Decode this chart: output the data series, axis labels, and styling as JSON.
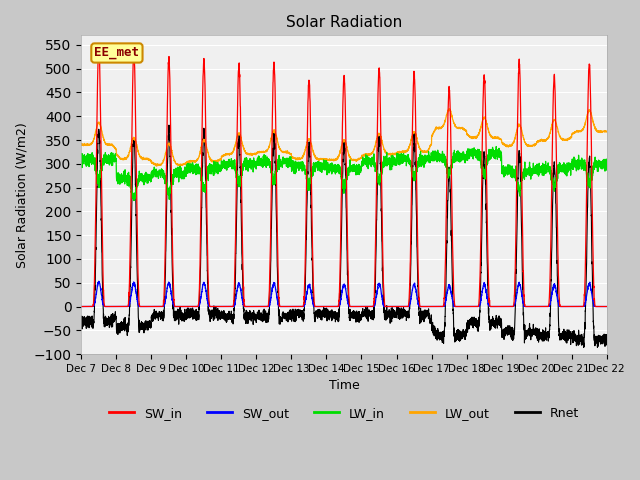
{
  "title": "Solar Radiation",
  "ylabel": "Solar Radiation (W/m2)",
  "xlabel": "Time",
  "ylim": [
    -100,
    570
  ],
  "yticks": [
    -100,
    -50,
    0,
    50,
    100,
    150,
    200,
    250,
    300,
    350,
    400,
    450,
    500,
    550
  ],
  "fig_bg_color": "#c8c8c8",
  "plot_bg_color": "#f0f0f0",
  "line_colors": {
    "SW_in": "#ff0000",
    "SW_out": "#0000ff",
    "LW_in": "#00dd00",
    "LW_out": "#ffa500",
    "Rnet": "#000000"
  },
  "watermark_text": "EE_met",
  "watermark_bg": "#ffff99",
  "watermark_border": "#cc8800",
  "n_days": 15,
  "start_day": 7,
  "points_per_day": 288,
  "sw_in_peak": [
    545,
    530,
    520,
    515,
    505,
    510,
    475,
    485,
    500,
    490,
    460,
    485,
    510,
    485,
    510
  ],
  "lw_in_night": [
    310,
    270,
    280,
    290,
    300,
    305,
    295,
    290,
    305,
    310,
    315,
    320,
    285,
    290,
    300
  ],
  "lw_out_night": [
    340,
    310,
    298,
    305,
    320,
    325,
    310,
    308,
    320,
    325,
    375,
    355,
    338,
    350,
    368
  ]
}
